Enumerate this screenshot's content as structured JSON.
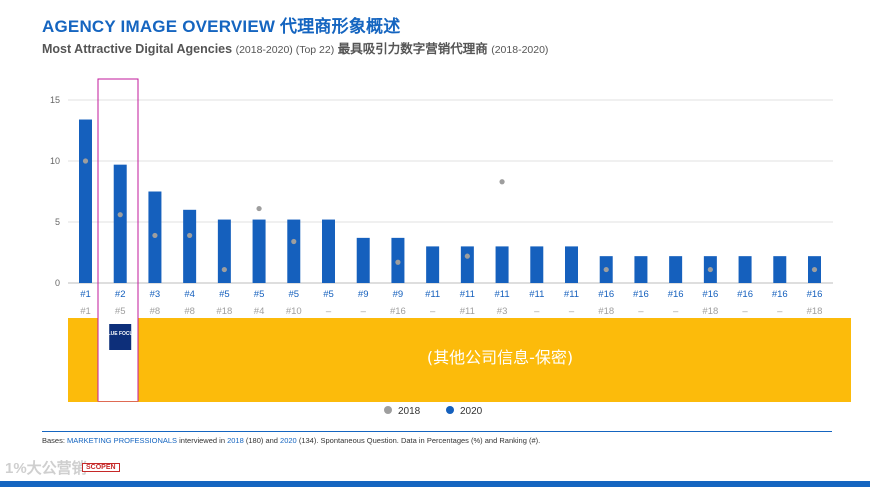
{
  "header": {
    "title": "AGENCY IMAGE OVERVIEW 代理商形象概述",
    "subtitle_main": "Most Attractive Digital Agencies",
    "subtitle_years": "(2018-2020) (Top 22)",
    "subtitle_cn": "最具吸引力数字营销代理商",
    "subtitle_years_cn": "(2018-2020)"
  },
  "chart_data": {
    "type": "bar",
    "ylim": [
      0,
      15
    ],
    "yticks": [
      0,
      5,
      10,
      15
    ],
    "grid": true,
    "legend_position": "bottom",
    "colors": {
      "2020": "#1560bd",
      "2018": "#9e9e9e",
      "band": "#fcbb0b",
      "highlight": "#c2189b"
    },
    "series": [
      {
        "name": "2020",
        "values": [
          13.4,
          9.7,
          7.5,
          6.0,
          5.2,
          5.2,
          5.2,
          5.2,
          3.7,
          3.7,
          3.0,
          3.0,
          3.0,
          3.0,
          3.0,
          2.2,
          2.2,
          2.2,
          2.2,
          2.2,
          2.2,
          2.2
        ]
      },
      {
        "name": "2018",
        "values": [
          10.0,
          5.6,
          3.9,
          3.9,
          1.1,
          6.1,
          3.4,
          null,
          null,
          1.7,
          null,
          2.2,
          8.3,
          null,
          null,
          1.1,
          null,
          null,
          1.1,
          null,
          null,
          1.1
        ]
      }
    ],
    "rank_2020": [
      "#1",
      "#2",
      "#3",
      "#4",
      "#5",
      "#5",
      "#5",
      "#5",
      "#9",
      "#9",
      "#11",
      "#11",
      "#11",
      "#11",
      "#11",
      "#16",
      "#16",
      "#16",
      "#16",
      "#16",
      "#16",
      "#16"
    ],
    "rank_2018": [
      "#1",
      "#5",
      "#8",
      "#8",
      "#18",
      "#4",
      "#10",
      "–",
      "–",
      "#16",
      "–",
      "#11",
      "#3",
      "–",
      "–",
      "#18",
      "–",
      "–",
      "#18",
      "–",
      "–",
      "#18"
    ],
    "highlight_index": 1,
    "band_text": "(其他公司信息-保密)",
    "logo_text": "BLUE FOCUS"
  },
  "footer": {
    "bases_prefix": "Bases: ",
    "bases_group": "MARKETING PROFESSIONALS",
    "bases_mid1": " interviewed in ",
    "year_2018": "2018",
    "bases_mid2": " (180) and ",
    "year_2020": "2020",
    "bases_suffix": " (134). Spontaneous Question. Data in Percentages (%) and Ranking (#).",
    "watermark": "1%大公营销",
    "brand_logo": "SCOPEN"
  }
}
